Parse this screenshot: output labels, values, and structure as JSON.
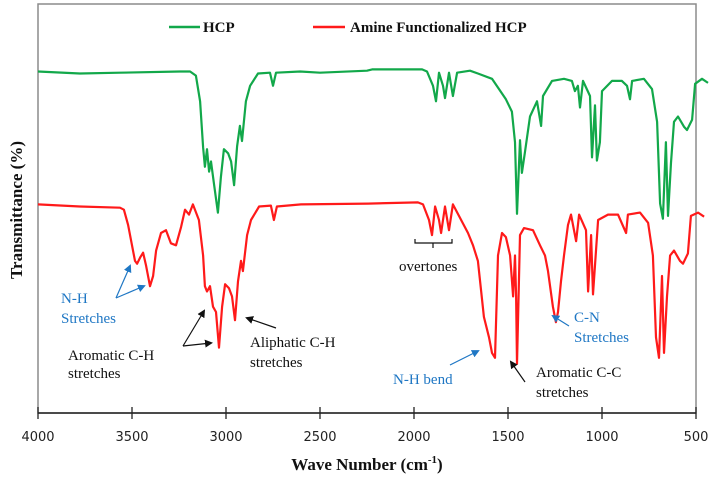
{
  "chart_data": {
    "type": "line",
    "title": "",
    "xlabel": "Wave Number (cm-1)",
    "xlabel_main": "Wave Number (cm",
    "xlabel_sup": "-1",
    "xlabel_close": ")",
    "ylabel": "Transmittance (%)",
    "xlim": [
      4000,
      500
    ],
    "x_reversed": true,
    "xticks": [
      4000,
      3500,
      3000,
      2500,
      2000,
      1500,
      1000,
      500
    ],
    "yticks": [],
    "grid": false,
    "legend_position": "top-center",
    "legend": [
      {
        "name": "HCP",
        "color": "#12a84a"
      },
      {
        "name": "Amine Functionalized HCP",
        "color": "#ff1a1a"
      }
    ],
    "note": "y values are relative transmittance in plot-pixel units (0 = top of plot, 100 = bottom of plot area); no y tick labels shown",
    "series": [
      {
        "name": "HCP",
        "color": "#12a84a",
        "points": [
          [
            4000,
            16.5
          ],
          [
            3777,
            17.0
          ],
          [
            3564,
            16.8
          ],
          [
            3245,
            16.5
          ],
          [
            3191,
            16.5
          ],
          [
            3160,
            17.5
          ],
          [
            3138,
            23.8
          ],
          [
            3122,
            35.0
          ],
          [
            3112,
            39.8
          ],
          [
            3101,
            35.5
          ],
          [
            3090,
            41.0
          ],
          [
            3080,
            38.5
          ],
          [
            3064,
            44.0
          ],
          [
            3043,
            51.0
          ],
          [
            3027,
            42.3
          ],
          [
            3011,
            35.5
          ],
          [
            2989,
            36.5
          ],
          [
            2973,
            38.5
          ],
          [
            2957,
            44.3
          ],
          [
            2941,
            34.8
          ],
          [
            2926,
            29.8
          ],
          [
            2915,
            33.5
          ],
          [
            2894,
            23.8
          ],
          [
            2872,
            20.0
          ],
          [
            2830,
            17.0
          ],
          [
            2766,
            16.8
          ],
          [
            2750,
            20.0
          ],
          [
            2734,
            16.8
          ],
          [
            2606,
            16.5
          ],
          [
            2500,
            16.8
          ],
          [
            2250,
            16.3
          ],
          [
            2223,
            16.0
          ],
          [
            2117,
            16.0
          ],
          [
            1957,
            16.0
          ],
          [
            1931,
            16.5
          ],
          [
            1899,
            20.0
          ],
          [
            1883,
            23.8
          ],
          [
            1867,
            16.8
          ],
          [
            1846,
            20.0
          ],
          [
            1835,
            23.0
          ],
          [
            1814,
            16.8
          ],
          [
            1793,
            22.5
          ],
          [
            1771,
            16.8
          ],
          [
            1702,
            16.3
          ],
          [
            1660,
            17.0
          ],
          [
            1585,
            18.3
          ],
          [
            1511,
            23.3
          ],
          [
            1479,
            26.3
          ],
          [
            1463,
            33.8
          ],
          [
            1452,
            51.3
          ],
          [
            1436,
            33.3
          ],
          [
            1426,
            41.3
          ],
          [
            1410,
            36.3
          ],
          [
            1383,
            27.5
          ],
          [
            1346,
            23.8
          ],
          [
            1324,
            29.8
          ],
          [
            1314,
            22.5
          ],
          [
            1266,
            18.8
          ],
          [
            1202,
            18.3
          ],
          [
            1160,
            18.8
          ],
          [
            1144,
            21.3
          ],
          [
            1128,
            20.0
          ],
          [
            1117,
            25.3
          ],
          [
            1101,
            18.8
          ],
          [
            1064,
            22.5
          ],
          [
            1053,
            37.5
          ],
          [
            1037,
            24.8
          ],
          [
            1027,
            38.3
          ],
          [
            1011,
            33.8
          ],
          [
            1000,
            21.3
          ],
          [
            947,
            18.8
          ],
          [
            894,
            18.8
          ],
          [
            867,
            20.0
          ],
          [
            851,
            23.3
          ],
          [
            840,
            18.8
          ],
          [
            777,
            18.3
          ],
          [
            734,
            20.8
          ],
          [
            707,
            28.8
          ],
          [
            691,
            48.8
          ],
          [
            676,
            52.5
          ],
          [
            660,
            33.8
          ],
          [
            649,
            51.8
          ],
          [
            633,
            38.8
          ],
          [
            617,
            28.8
          ],
          [
            596,
            27.5
          ],
          [
            564,
            30.0
          ],
          [
            548,
            30.8
          ],
          [
            521,
            28.3
          ],
          [
            505,
            19.5
          ],
          [
            468,
            18.3
          ],
          [
            436,
            19.3
          ]
        ]
      },
      {
        "name": "Amine Functionalized HCP",
        "color": "#ff1a1a",
        "points": [
          [
            4000,
            49.0
          ],
          [
            3777,
            49.5
          ],
          [
            3564,
            49.8
          ],
          [
            3543,
            50.3
          ],
          [
            3521,
            54.0
          ],
          [
            3500,
            59.0
          ],
          [
            3484,
            62.8
          ],
          [
            3473,
            63.5
          ],
          [
            3457,
            62.0
          ],
          [
            3441,
            60.8
          ],
          [
            3425,
            64.0
          ],
          [
            3404,
            69.0
          ],
          [
            3388,
            66.5
          ],
          [
            3372,
            60.3
          ],
          [
            3346,
            56.0
          ],
          [
            3319,
            55.3
          ],
          [
            3293,
            58.5
          ],
          [
            3266,
            59.0
          ],
          [
            3239,
            54.5
          ],
          [
            3218,
            50.3
          ],
          [
            3197,
            51.5
          ],
          [
            3176,
            49.0
          ],
          [
            3144,
            52.8
          ],
          [
            3122,
            61.5
          ],
          [
            3112,
            69.0
          ],
          [
            3101,
            70.3
          ],
          [
            3085,
            69.0
          ],
          [
            3069,
            74.0
          ],
          [
            3053,
            75.3
          ],
          [
            3037,
            84.0
          ],
          [
            3021,
            74.0
          ],
          [
            3005,
            68.5
          ],
          [
            2984,
            69.5
          ],
          [
            2968,
            71.5
          ],
          [
            2952,
            77.3
          ],
          [
            2936,
            67.8
          ],
          [
            2920,
            62.8
          ],
          [
            2910,
            65.3
          ],
          [
            2888,
            56.5
          ],
          [
            2867,
            52.8
          ],
          [
            2824,
            49.5
          ],
          [
            2761,
            49.3
          ],
          [
            2745,
            52.8
          ],
          [
            2729,
            49.5
          ],
          [
            2601,
            49.0
          ],
          [
            2245,
            48.8
          ],
          [
            1979,
            48.5
          ],
          [
            1952,
            49.0
          ],
          [
            1920,
            52.8
          ],
          [
            1904,
            56.5
          ],
          [
            1888,
            49.5
          ],
          [
            1867,
            52.8
          ],
          [
            1856,
            56.0
          ],
          [
            1835,
            49.5
          ],
          [
            1814,
            55.3
          ],
          [
            1793,
            49.0
          ],
          [
            1713,
            56.0
          ],
          [
            1686,
            59.0
          ],
          [
            1660,
            62.8
          ],
          [
            1628,
            76.5
          ],
          [
            1601,
            81.5
          ],
          [
            1585,
            85.3
          ],
          [
            1569,
            86.5
          ],
          [
            1553,
            61.5
          ],
          [
            1532,
            56.0
          ],
          [
            1511,
            57.0
          ],
          [
            1489,
            61.5
          ],
          [
            1473,
            71.5
          ],
          [
            1463,
            61.5
          ],
          [
            1457,
            71.5
          ],
          [
            1452,
            88.0
          ],
          [
            1436,
            56.5
          ],
          [
            1415,
            54.8
          ],
          [
            1367,
            55.3
          ],
          [
            1330,
            59.0
          ],
          [
            1303,
            61.5
          ],
          [
            1287,
            65.3
          ],
          [
            1261,
            74.0
          ],
          [
            1245,
            77.8
          ],
          [
            1234,
            75.3
          ],
          [
            1218,
            67.8
          ],
          [
            1202,
            61.5
          ],
          [
            1181,
            54.0
          ],
          [
            1165,
            51.5
          ],
          [
            1138,
            58.0
          ],
          [
            1122,
            51.5
          ],
          [
            1085,
            55.3
          ],
          [
            1074,
            70.3
          ],
          [
            1058,
            56.5
          ],
          [
            1048,
            71.0
          ],
          [
            1021,
            52.8
          ],
          [
            968,
            51.5
          ],
          [
            915,
            51.5
          ],
          [
            872,
            56.0
          ],
          [
            862,
            51.5
          ],
          [
            798,
            51.0
          ],
          [
            755,
            53.5
          ],
          [
            729,
            61.5
          ],
          [
            713,
            81.5
          ],
          [
            697,
            86.5
          ],
          [
            681,
            66.5
          ],
          [
            670,
            85.3
          ],
          [
            654,
            71.5
          ],
          [
            638,
            61.5
          ],
          [
            617,
            60.3
          ],
          [
            585,
            62.8
          ],
          [
            569,
            63.5
          ],
          [
            543,
            61.0
          ],
          [
            527,
            51.8
          ],
          [
            489,
            51.0
          ],
          [
            457,
            52.0
          ]
        ]
      }
    ],
    "annotations": [
      {
        "text": [
          "N-H",
          "Stretches"
        ],
        "color": "#1f77c4",
        "targets_wn": [
          3480,
          3380
        ]
      },
      {
        "text": [
          "Aromatic C-H",
          "stretches"
        ],
        "color": "#111111",
        "targets_wn": [
          3085,
          3030
        ]
      },
      {
        "text": [
          "Aliphatic C-H",
          "stretches"
        ],
        "color": "#111111",
        "targets_wn": [
          2930
        ]
      },
      {
        "text": [
          "overtones"
        ],
        "color": "#111111",
        "range_wn": [
          2000,
          1780
        ]
      },
      {
        "text": [
          "N-H bend"
        ],
        "color": "#1f77c4",
        "targets_wn": [
          1620
        ]
      },
      {
        "text": [
          "Aromatic C-C",
          "stretches"
        ],
        "color": "#111111",
        "targets_wn": [
          1505
        ]
      },
      {
        "text": [
          "C-N",
          "Stretches"
        ],
        "color": "#1f77c4",
        "targets_wn": [
          1280
        ]
      }
    ]
  },
  "legend": {
    "hcp_label": "HCP",
    "amine_label": "Amine Functionalized HCP"
  },
  "axes": {
    "x_title": "Wave Number (cm",
    "x_title_sup": "-1",
    "x_title_close": ")",
    "y_title": "Transmittance (%)",
    "x_ticks": [
      "4000",
      "3500",
      "3000",
      "2500",
      "2000",
      "1500",
      "1000",
      "500"
    ]
  },
  "annotation_labels": {
    "nh_stretch_1": "N-H",
    "nh_stretch_2": "Stretches",
    "arom_ch_1": "Aromatic C-H",
    "arom_ch_2": "stretches",
    "aliph_ch_1": "Aliphatic C-H",
    "aliph_ch_2": "stretches",
    "overtones": "overtones",
    "nh_bend": "N-H bend",
    "arom_cc_1": "Aromatic C-C",
    "arom_cc_2": "stretches",
    "cn_1": "C-N",
    "cn_2": "Stretches"
  }
}
